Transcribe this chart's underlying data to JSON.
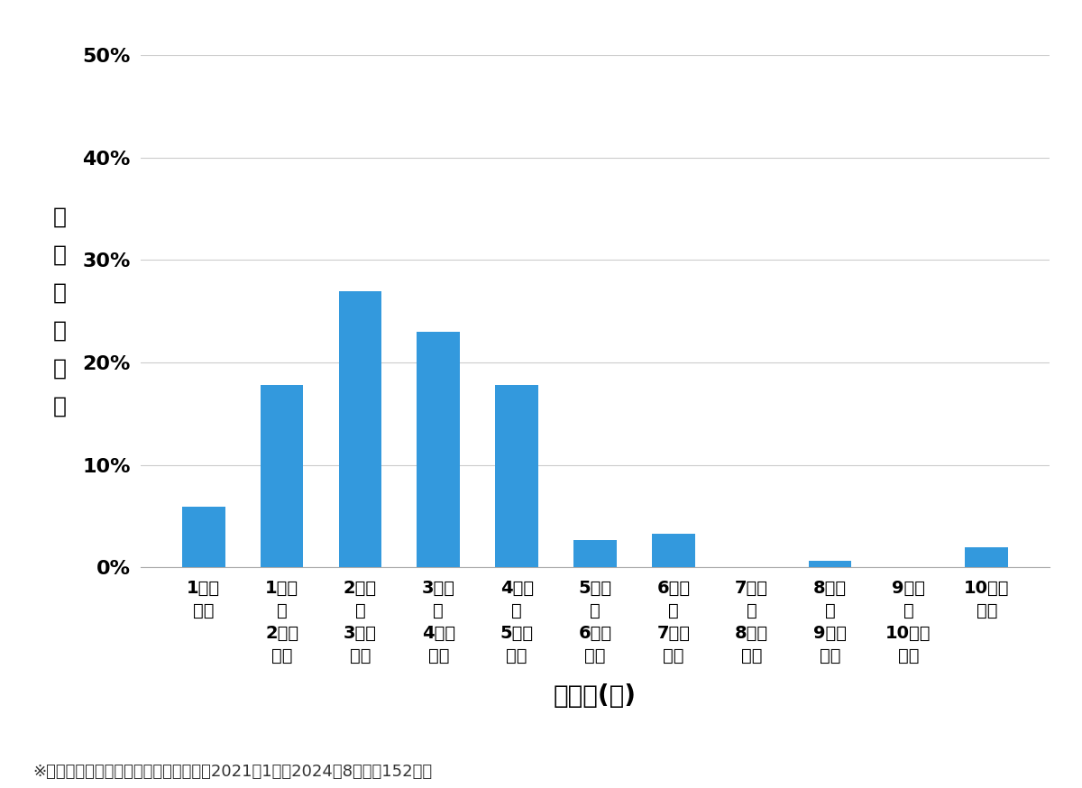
{
  "categories": [
    "1万円\n未満",
    "1万円\n～\n2万円\n未満",
    "2万円\n～\n3万円\n未満",
    "3万円\n～\n4万円\n未満",
    "4万円\n～\n5万円\n未満",
    "5万円\n～\n6万円\n未満",
    "6万円\n～\n7万円\n未満",
    "7万円\n～\n8万円\n未満",
    "8万円\n～\n9万円\n未満",
    "9万円\n～\n10万円\n未満",
    "10万円\n以上"
  ],
  "values": [
    0.0592,
    0.1776,
    0.2697,
    0.2303,
    0.1776,
    0.0263,
    0.0329,
    0.0,
    0.0066,
    0.0,
    0.0197
  ],
  "bar_color": "#3399dd",
  "background_color": "#ffffff",
  "ylabel_chars": [
    "価",
    "格",
    "帯",
    "の",
    "割",
    "合"
  ],
  "xlabel": "価格帯(円)",
  "footnote": "※弊社受付の案件を対象に集計（期間：2021年1月～2024年8月、訜152件）",
  "ylim": [
    0,
    0.5
  ],
  "yticks": [
    0.0,
    0.1,
    0.2,
    0.3,
    0.4,
    0.5
  ],
  "ytick_labels": [
    "0%",
    "10%",
    "20%",
    "30%",
    "40%",
    "50%"
  ],
  "grid_color": "#cccccc",
  "ylabel_fontsize": 18,
  "xlabel_fontsize": 20,
  "tick_fontsize": 14,
  "footnote_fontsize": 13,
  "bar_width": 0.55
}
